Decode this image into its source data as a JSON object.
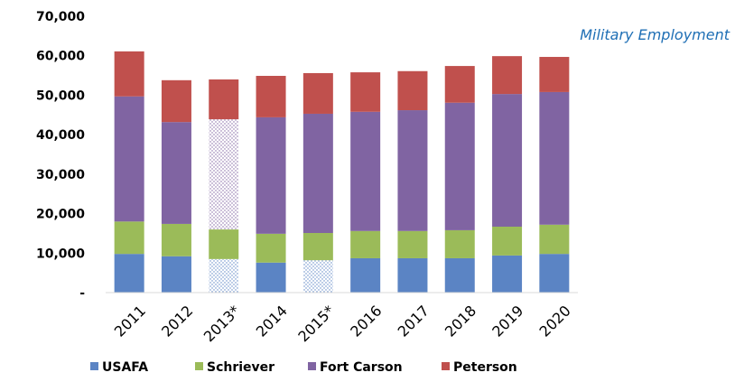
{
  "chart_data": {
    "type": "stacked_bar",
    "annotation": "Military Employment",
    "categories": [
      "2011",
      "2012",
      "2013*",
      "2014",
      "2015*",
      "2016",
      "2017",
      "2018",
      "2019",
      "2020"
    ],
    "series": [
      {
        "name": "USAFA",
        "color": "#5b84c4",
        "values": [
          9800,
          9200,
          8500,
          7600,
          8200,
          8700,
          8700,
          8700,
          9400,
          9800
        ],
        "hatched": [
          false,
          false,
          true,
          false,
          true,
          false,
          false,
          false,
          false,
          false
        ]
      },
      {
        "name": "Schriever",
        "color": "#9bbb59",
        "values": [
          8200,
          8200,
          7500,
          7300,
          6900,
          6900,
          6900,
          7100,
          7300,
          7400
        ],
        "hatched": [
          false,
          false,
          false,
          false,
          false,
          false,
          false,
          false,
          false,
          false
        ]
      },
      {
        "name": "Fort Carson",
        "color": "#8064a2",
        "values": [
          31700,
          25800,
          27900,
          29500,
          30200,
          30200,
          30600,
          32300,
          33600,
          33600
        ],
        "hatched": [
          false,
          false,
          true,
          false,
          false,
          false,
          false,
          false,
          false,
          false
        ]
      },
      {
        "name": "Peterson",
        "color": "#c0504d",
        "values": [
          11400,
          10600,
          10100,
          10500,
          10300,
          10000,
          9900,
          9300,
          9600,
          8900
        ],
        "hatched": [
          false,
          false,
          false,
          false,
          false,
          false,
          false,
          false,
          false,
          false
        ]
      }
    ],
    "ylim": [
      0,
      70000
    ],
    "yticks": [
      {
        "value": 0,
        "label": "-"
      },
      {
        "value": 10000,
        "label": "10,000"
      },
      {
        "value": 20000,
        "label": "20,000"
      },
      {
        "value": 30000,
        "label": "30,000"
      },
      {
        "value": 40000,
        "label": "40,000"
      },
      {
        "value": 50000,
        "label": "50,000"
      },
      {
        "value": 60000,
        "label": "60,000"
      },
      {
        "value": 70000,
        "label": "70,000"
      }
    ],
    "legend": "bottom",
    "grid": false
  }
}
